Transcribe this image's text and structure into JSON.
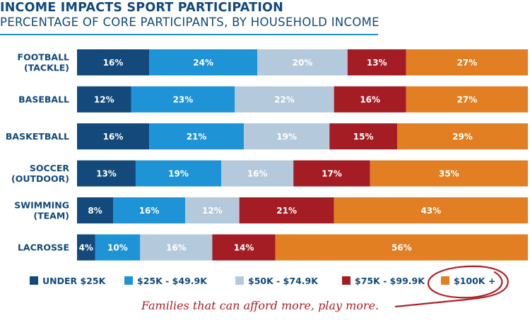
{
  "title": "INCOME IMPACTS SPORT PARTICIPATION",
  "subtitle": "PERCENTAGE OF CORE PARTICIPANTS, BY HOUSEHOLD INCOME",
  "tagline": "Families that can afford more, play more.",
  "colors": {
    "title": "#11497c",
    "rule": "#1e8fd3",
    "under25k": "#13497b",
    "k25_49": "#1e93d6",
    "k50_74": "#b4c9dc",
    "k75_99": "#a41d24",
    "k100plus": "#e17f22",
    "highlight": "#b02025"
  },
  "chart_data": {
    "type": "bar",
    "orientation": "horizontal",
    "stacked": true,
    "title": "INCOME IMPACTS SPORT PARTICIPATION",
    "subtitle": "PERCENTAGE OF CORE PARTICIPANTS, BY HOUSEHOLD INCOME",
    "categories": [
      [
        "FOOTBALL",
        "(TACKLE)"
      ],
      [
        "BASEBALL"
      ],
      [
        "BASKETBALL"
      ],
      [
        "SOCCER",
        "(OUTDOOR)"
      ],
      [
        "SWIMMING",
        "(TEAM)"
      ],
      [
        "LACROSSE"
      ]
    ],
    "series": [
      {
        "name": "UNDER $25K",
        "color": "#13497b",
        "values": [
          16,
          12,
          16,
          13,
          8,
          4
        ],
        "labels": [
          "16%",
          "12%",
          "16%",
          "13%",
          "8%",
          "4%"
        ]
      },
      {
        "name": "$25K - $49.9K",
        "color": "#1e93d6",
        "values": [
          24,
          23,
          21,
          19,
          16,
          10
        ],
        "labels": [
          "24%",
          "23%",
          "21%",
          "19%",
          "16%",
          "10%"
        ]
      },
      {
        "name": "$50K - $74.9K",
        "color": "#b4c9dc",
        "values": [
          20,
          22,
          19,
          16,
          12,
          16
        ],
        "labels": [
          "20%",
          "22%",
          "19%",
          "16%",
          "12%",
          "16%"
        ]
      },
      {
        "name": "$75K - $99.9K",
        "color": "#a41d24",
        "values": [
          13,
          16,
          15,
          17,
          21,
          14
        ],
        "labels": [
          "13%",
          "16%",
          "15%",
          "17%",
          "21%",
          "14%"
        ]
      },
      {
        "name": "$100K +",
        "color": "#e17f22",
        "values": [
          27,
          27,
          29,
          35,
          43,
          56
        ],
        "labels": [
          "27%",
          "27%",
          "29%",
          "35%",
          "43%",
          "56%"
        ]
      }
    ],
    "xlim": [
      0,
      100
    ],
    "grid": false,
    "legend": "bottom"
  }
}
